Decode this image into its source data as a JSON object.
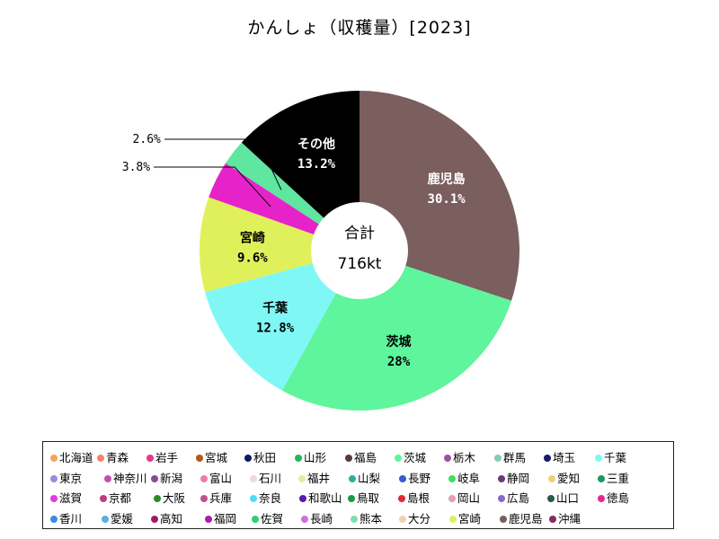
{
  "chart_data": {
    "type": "pie",
    "title": "かんしょ（収穫量）[2023]",
    "center_label": "合計",
    "center_value": "716kt",
    "slices": [
      {
        "name": "鹿児島",
        "value": 30.1,
        "label": "30.1%",
        "color": "#7b5e5e",
        "text_color": "#ffffff"
      },
      {
        "name": "茨城",
        "value": 28,
        "label": "28%",
        "color": "#5ef59c",
        "text_color": "#000000"
      },
      {
        "name": "千葉",
        "value": 12.8,
        "label": "12.8%",
        "color": "#7ff8f5",
        "text_color": "#000000"
      },
      {
        "name": "宮崎",
        "value": 9.6,
        "label": "9.6%",
        "color": "#e0f05a",
        "text_color": "#000000"
      },
      {
        "name": "",
        "value": 3.8,
        "label": "3.8%",
        "color": "#e623c8",
        "text_color": "#000000"
      },
      {
        "name": "",
        "value": 2.6,
        "label": "2.6%",
        "color": "#5fe6a0",
        "text_color": "#000000"
      },
      {
        "name": "その他",
        "value": 13.2,
        "label": "13.2%",
        "color": "#000000",
        "text_color": "#ffffff"
      }
    ],
    "legend": [
      {
        "name": "北海道",
        "color": "#f4a460"
      },
      {
        "name": "青森",
        "color": "#fa8072"
      },
      {
        "name": "岩手",
        "color": "#e8358f"
      },
      {
        "name": "宮城",
        "color": "#b5561b"
      },
      {
        "name": "秋田",
        "color": "#0b1b5e"
      },
      {
        "name": "山形",
        "color": "#1fb85a"
      },
      {
        "name": "福島",
        "color": "#5a3a3a"
      },
      {
        "name": "茨城",
        "color": "#5ef59c"
      },
      {
        "name": "栃木",
        "color": "#a050a0"
      },
      {
        "name": "群馬",
        "color": "#7fcfb0"
      },
      {
        "name": "埼玉",
        "color": "#1a1a6e"
      },
      {
        "name": "千葉",
        "color": "#7ff8f5"
      },
      {
        "name": "東京",
        "color": "#9a8ae0"
      },
      {
        "name": "神奈川",
        "color": "#c04fb0"
      },
      {
        "name": "新潟",
        "color": "#8a4a9a"
      },
      {
        "name": "富山",
        "color": "#f07ab0"
      },
      {
        "name": "石川",
        "color": "#f0dada"
      },
      {
        "name": "福井",
        "color": "#e0f09a"
      },
      {
        "name": "山梨",
        "color": "#2ab0a0"
      },
      {
        "name": "長野",
        "color": "#3a5ad0"
      },
      {
        "name": "岐阜",
        "color": "#3ae05a"
      },
      {
        "name": "静岡",
        "color": "#6a3a7a"
      },
      {
        "name": "愛知",
        "color": "#f0d07a"
      },
      {
        "name": "三重",
        "color": "#1a9a5a"
      },
      {
        "name": "滋賀",
        "color": "#e03ae0"
      },
      {
        "name": "京都",
        "color": "#c03a7a"
      },
      {
        "name": "大阪",
        "color": "#2a8a2a"
      },
      {
        "name": "兵庫",
        "color": "#c04f8a"
      },
      {
        "name": "奈良",
        "color": "#4ae0f0"
      },
      {
        "name": "和歌山",
        "color": "#5a1ab0"
      },
      {
        "name": "鳥取",
        "color": "#1a9a4a"
      },
      {
        "name": "島根",
        "color": "#e02a3a"
      },
      {
        "name": "岡山",
        "color": "#e0a0b0"
      },
      {
        "name": "広島",
        "color": "#8a6ac0"
      },
      {
        "name": "山口",
        "color": "#2a5a4a"
      },
      {
        "name": "徳島",
        "color": "#e02a9a"
      },
      {
        "name": "香川",
        "color": "#3a8ae0"
      },
      {
        "name": "愛媛",
        "color": "#5ab0e0"
      },
      {
        "name": "高知",
        "color": "#a01a6a"
      },
      {
        "name": "福岡",
        "color": "#b01ab0"
      },
      {
        "name": "佐賀",
        "color": "#2ad07a"
      },
      {
        "name": "長崎",
        "color": "#d070e0"
      },
      {
        "name": "熊本",
        "color": "#7ae0b0"
      },
      {
        "name": "大分",
        "color": "#f0d0b0"
      },
      {
        "name": "宮崎",
        "color": "#e0f05a"
      },
      {
        "name": "鹿児島",
        "color": "#7b5e5e"
      },
      {
        "name": "沖縄",
        "color": "#8a2a5a"
      }
    ]
  }
}
